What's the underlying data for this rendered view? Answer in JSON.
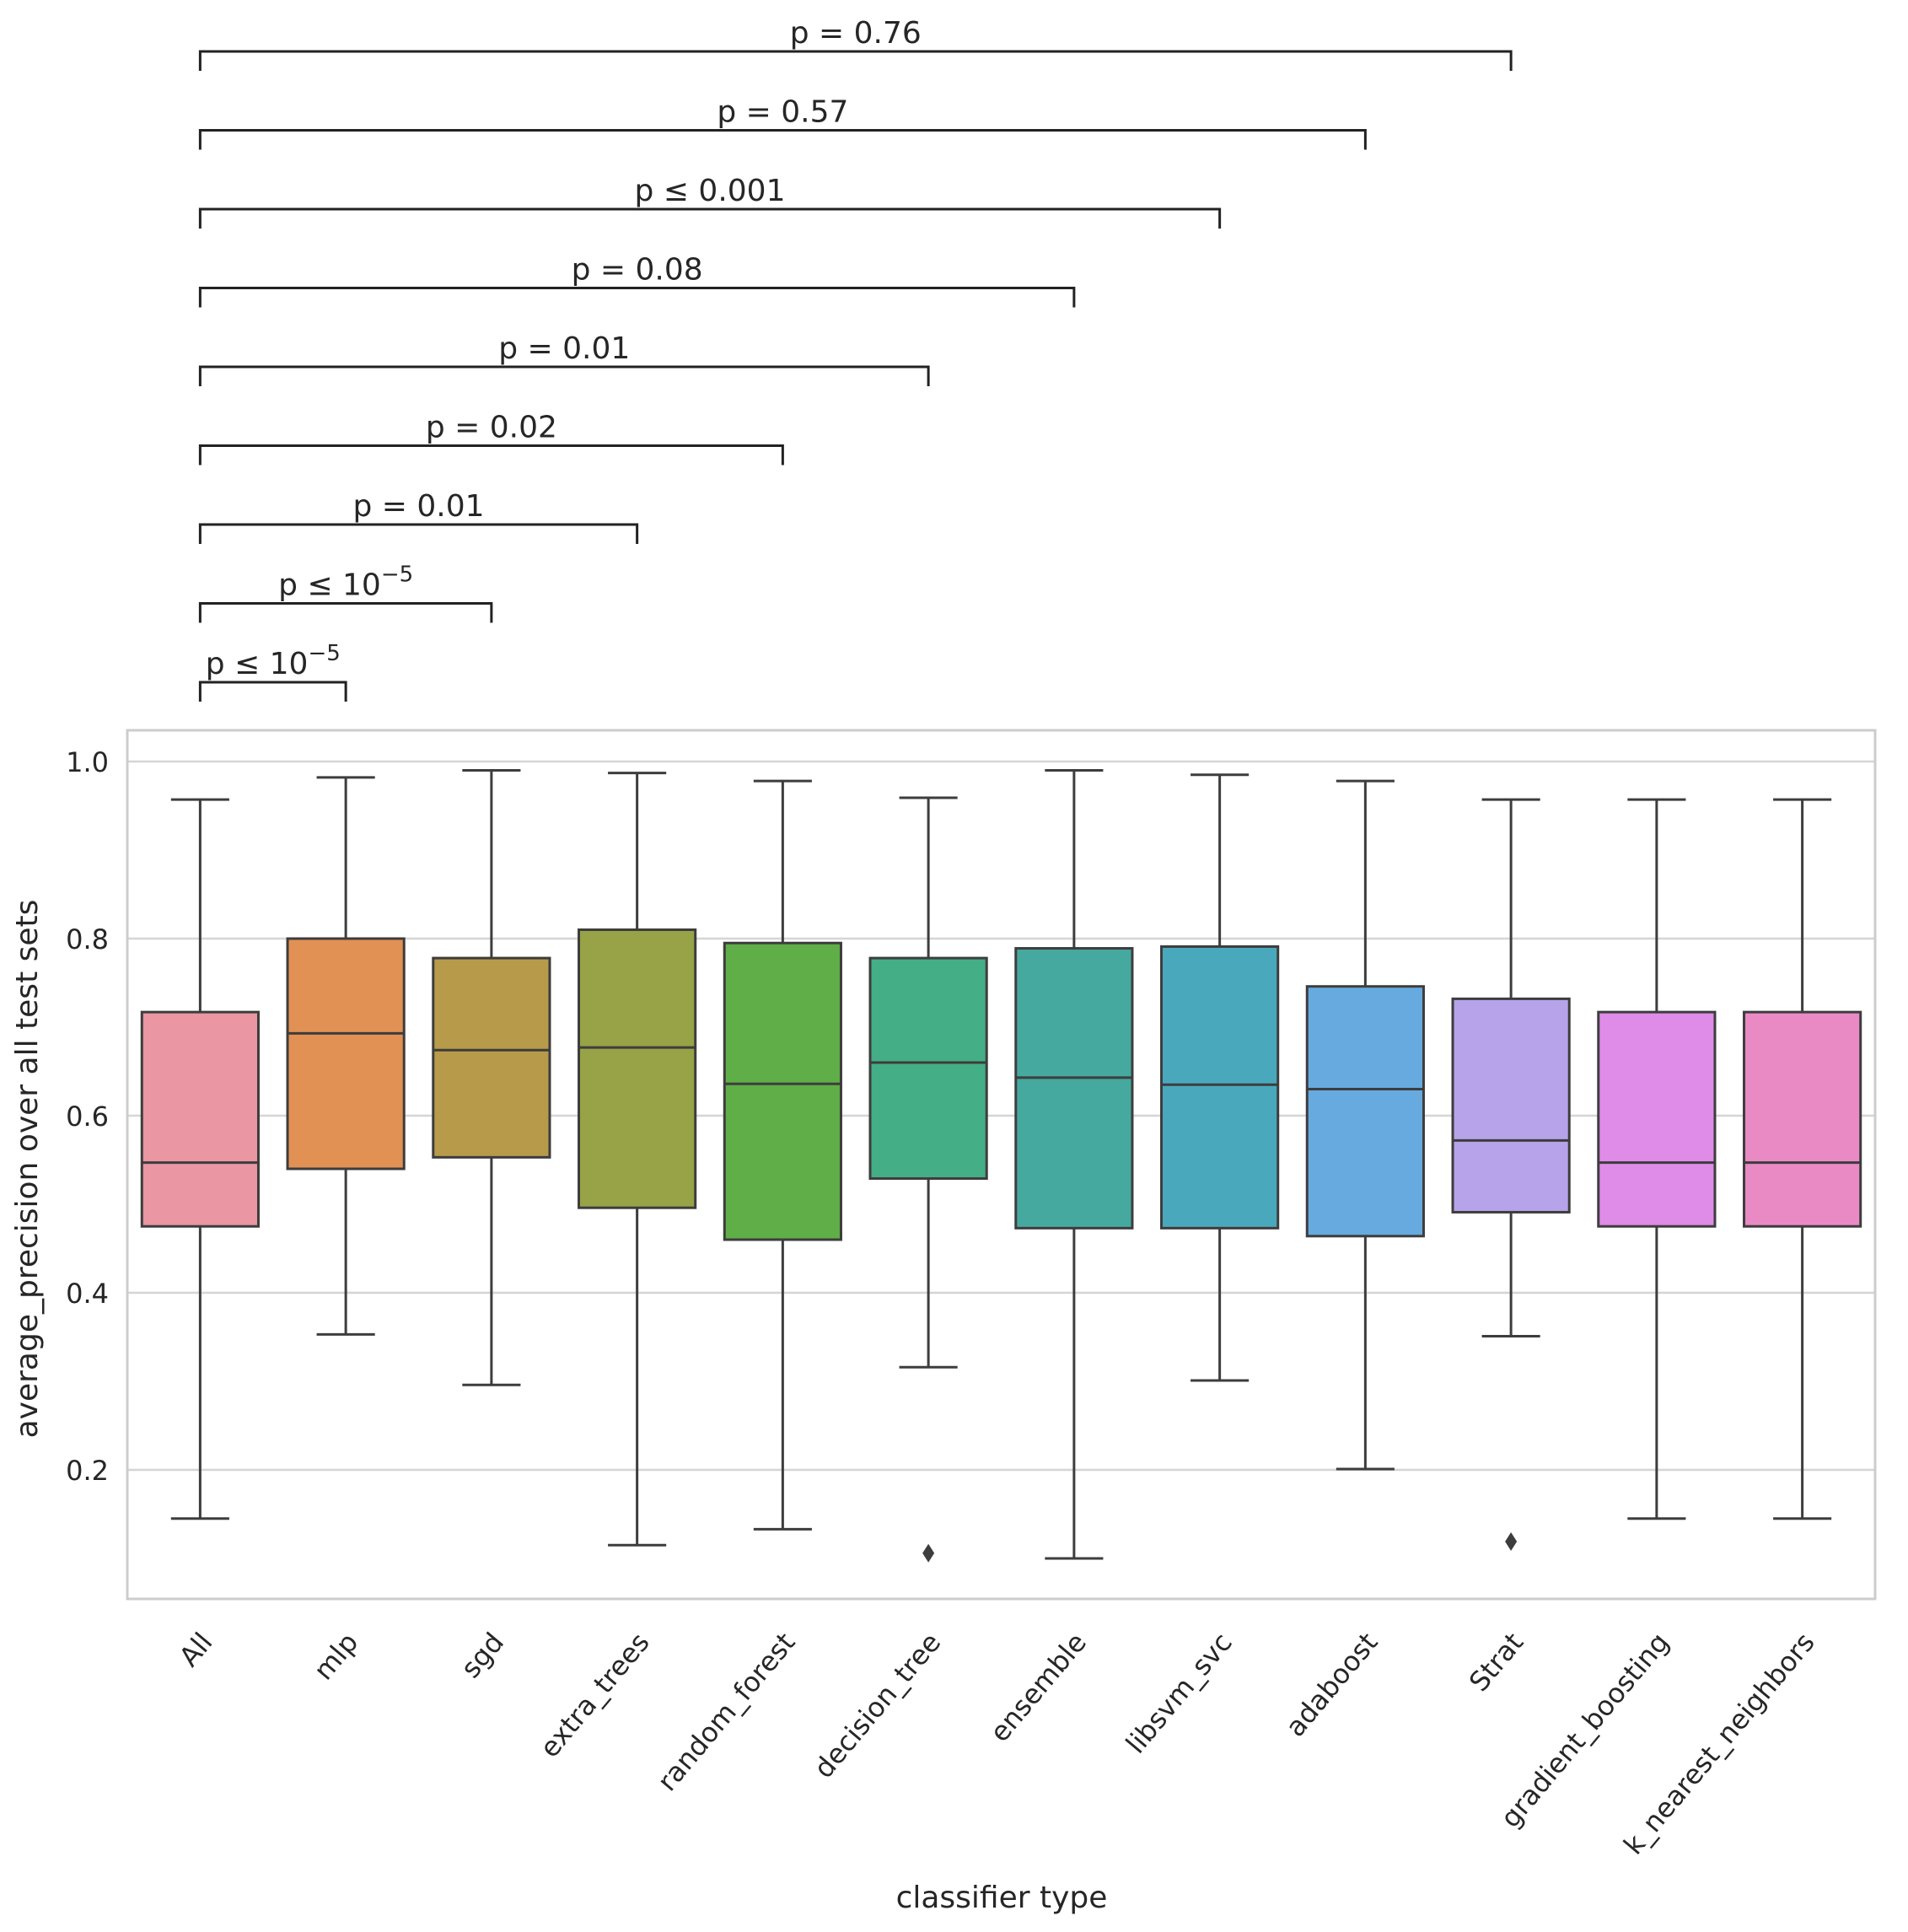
{
  "chart_data": {
    "type": "box",
    "title": "",
    "xlabel": "classifier type",
    "ylabel": "average_precision over all test sets",
    "ylim": [
      0.055,
      1.035
    ],
    "yticks": [
      0.2,
      0.4,
      0.6,
      0.8,
      1.0
    ],
    "ytick_labels": [
      "0.2",
      "0.4",
      "0.6",
      "0.8",
      "1.0"
    ],
    "grid": true,
    "categories": [
      "All",
      "mlp",
      "sgd",
      "extra_trees",
      "random_forest",
      "decision_tree",
      "ensemble",
      "libsvm_svc",
      "adaboost",
      "Strat",
      "gradient_boosting",
      "k_nearest_neighbors"
    ],
    "colors": [
      "#ea96a3",
      "#e19153",
      "#b89b4a",
      "#98a246",
      "#5fae47",
      "#44ae86",
      "#45a99f",
      "#4aa8bd",
      "#66aadf",
      "#b6a3ea",
      "#df8be8",
      "#e98ac5"
    ],
    "boxes": [
      {
        "name": "All",
        "whislo": 0.145,
        "q1": 0.475,
        "med": 0.547,
        "q3": 0.717,
        "whishi": 0.957,
        "fliers": []
      },
      {
        "name": "mlp",
        "whislo": 0.353,
        "q1": 0.54,
        "med": 0.693,
        "q3": 0.8,
        "whishi": 0.982,
        "fliers": []
      },
      {
        "name": "sgd",
        "whislo": 0.296,
        "q1": 0.553,
        "med": 0.674,
        "q3": 0.778,
        "whishi": 0.99,
        "fliers": []
      },
      {
        "name": "extra_trees",
        "whislo": 0.115,
        "q1": 0.496,
        "med": 0.677,
        "q3": 0.81,
        "whishi": 0.987,
        "fliers": []
      },
      {
        "name": "random_forest",
        "whislo": 0.133,
        "q1": 0.46,
        "med": 0.636,
        "q3": 0.795,
        "whishi": 0.978,
        "fliers": []
      },
      {
        "name": "decision_tree",
        "whislo": 0.316,
        "q1": 0.529,
        "med": 0.66,
        "q3": 0.778,
        "whishi": 0.959,
        "fliers": [
          0.106
        ]
      },
      {
        "name": "ensemble",
        "whislo": 0.1,
        "q1": 0.473,
        "med": 0.643,
        "q3": 0.789,
        "whishi": 0.99,
        "fliers": []
      },
      {
        "name": "libsvm_svc",
        "whislo": 0.301,
        "q1": 0.473,
        "med": 0.635,
        "q3": 0.791,
        "whishi": 0.985,
        "fliers": []
      },
      {
        "name": "adaboost",
        "whislo": 0.201,
        "q1": 0.464,
        "med": 0.63,
        "q3": 0.746,
        "whishi": 0.978,
        "fliers": []
      },
      {
        "name": "Strat",
        "whislo": 0.351,
        "q1": 0.491,
        "med": 0.572,
        "q3": 0.732,
        "whishi": 0.957,
        "fliers": [
          0.119
        ]
      },
      {
        "name": "gradient_boosting",
        "whislo": 0.145,
        "q1": 0.475,
        "med": 0.547,
        "q3": 0.717,
        "whishi": 0.957,
        "fliers": []
      },
      {
        "name": "k_nearest_neighbors",
        "whislo": 0.145,
        "q1": 0.475,
        "med": 0.547,
        "q3": 0.717,
        "whishi": 0.957,
        "fliers": []
      }
    ],
    "annotations": [
      {
        "from": "All",
        "to": "mlp",
        "text": "p ≤ 10",
        "exp": "−5"
      },
      {
        "from": "All",
        "to": "sgd",
        "text": "p ≤ 10",
        "exp": "−5"
      },
      {
        "from": "All",
        "to": "extra_trees",
        "text": "p = 0.01",
        "exp": ""
      },
      {
        "from": "All",
        "to": "random_forest",
        "text": "p = 0.02",
        "exp": ""
      },
      {
        "from": "All",
        "to": "decision_tree",
        "text": "p = 0.01",
        "exp": ""
      },
      {
        "from": "All",
        "to": "ensemble",
        "text": "p = 0.08",
        "exp": ""
      },
      {
        "from": "All",
        "to": "libsvm_svc",
        "text": "p ≤ 0.001",
        "exp": ""
      },
      {
        "from": "All",
        "to": "adaboost",
        "text": "p = 0.57",
        "exp": ""
      },
      {
        "from": "All",
        "to": "Strat",
        "text": "p = 0.76",
        "exp": ""
      }
    ]
  }
}
